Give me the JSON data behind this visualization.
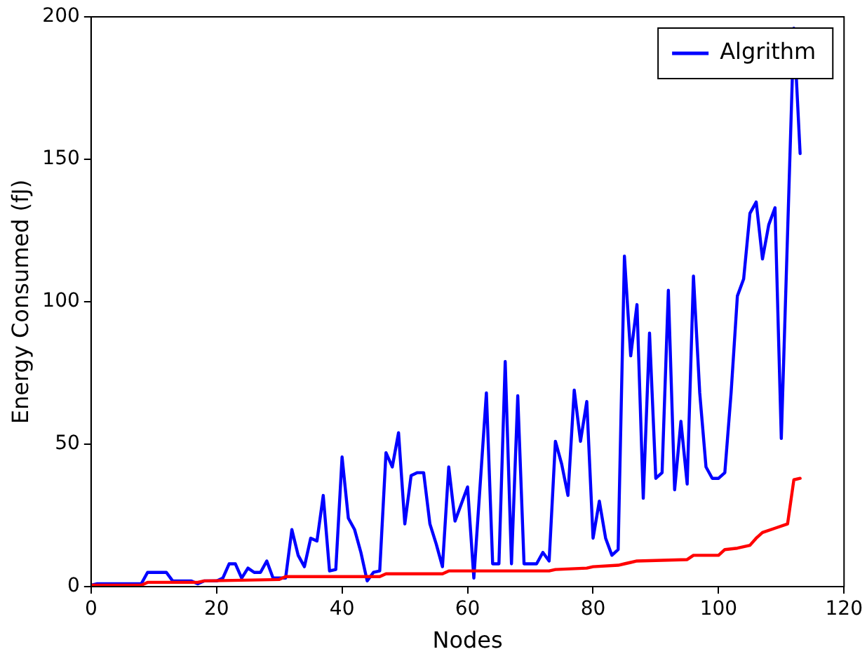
{
  "chart_data": {
    "type": "line",
    "xlabel": "Nodes",
    "ylabel": "Energy Consumed (fJ)",
    "xlim": [
      0,
      120
    ],
    "xticks": [
      0,
      20,
      40,
      60,
      80,
      100,
      120
    ],
    "ylim": [
      0,
      200
    ],
    "yticks": [
      0,
      50,
      100,
      150,
      200
    ],
    "grid": false,
    "legend": "top right",
    "marker": "none",
    "line_style": "solid",
    "series": [
      {
        "color": "#ff0000",
        "x": [
          0,
          8,
          9,
          17,
          18,
          30,
          31,
          46,
          47,
          56,
          57,
          73,
          74,
          79,
          80,
          84,
          85,
          86,
          87,
          95,
          96,
          100,
          101,
          103,
          104,
          105,
          106,
          107,
          109,
          111,
          112,
          113
        ],
        "values": [
          0.5,
          0.5,
          1.5,
          1.5,
          2,
          2.5,
          3.5,
          3.5,
          4.5,
          4.5,
          5.5,
          5.5,
          6,
          6.5,
          7,
          7.5,
          8,
          8.5,
          9,
          9.5,
          11,
          11,
          13,
          13.5,
          14,
          14.5,
          17,
          19,
          20.5,
          22,
          37.5,
          38
        ]
      },
      {
        "name": "Algrithm",
        "color": "#0000ff",
        "x": [
          0,
          1,
          8,
          9,
          12,
          13,
          16,
          17,
          18,
          20,
          21,
          22,
          23,
          24,
          25,
          26,
          27,
          28,
          29,
          31,
          32,
          33,
          34,
          35,
          36,
          37,
          38,
          39,
          40,
          41,
          42,
          43,
          44,
          45,
          46,
          47,
          48,
          49,
          50,
          51,
          52,
          53,
          54,
          55,
          56,
          57,
          58,
          59,
          60,
          61,
          63,
          64,
          65,
          66,
          67,
          68,
          69,
          71,
          72,
          73,
          74,
          75,
          76,
          77,
          78,
          79,
          80,
          81,
          82,
          83,
          84,
          85,
          86,
          87,
          88,
          89,
          90,
          91,
          92,
          93,
          94,
          95,
          96,
          97,
          98,
          99,
          100,
          101,
          102,
          103,
          104,
          105,
          106,
          107,
          108,
          109,
          110,
          112,
          113
        ],
        "values": [
          0.5,
          1,
          1,
          5,
          5,
          2,
          2,
          1,
          2,
          2,
          3,
          8,
          8,
          3,
          6.5,
          5,
          5,
          9,
          3,
          3,
          20,
          11,
          7,
          17,
          16,
          32,
          5.5,
          6,
          45.5,
          24,
          20,
          12,
          2,
          5,
          5.5,
          47,
          42,
          54,
          22,
          39,
          40,
          40,
          22,
          15,
          7,
          42,
          23,
          29,
          35,
          3,
          68,
          8,
          8,
          79,
          8,
          67,
          8,
          8,
          12,
          9,
          51,
          43,
          32,
          69,
          51,
          65,
          17,
          30,
          17,
          11,
          13,
          116,
          81,
          99,
          31,
          89,
          38,
          40,
          104,
          34,
          58,
          36,
          109,
          68,
          42,
          38,
          38,
          40,
          68,
          102,
          108,
          131,
          135,
          115,
          127,
          133,
          52,
          196,
          152
        ]
      }
    ]
  }
}
